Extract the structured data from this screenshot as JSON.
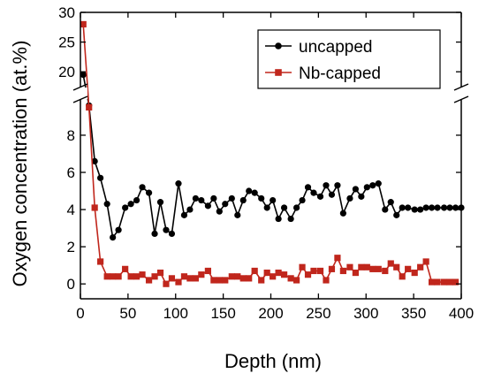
{
  "chart_data": {
    "type": "line",
    "title": "",
    "xlabel": "Depth (nm)",
    "ylabel": "Oxygen concentration (at.%)",
    "xlim": [
      0,
      400
    ],
    "y_lower_range": [
      -0.8,
      9.9
    ],
    "y_upper_range": [
      17.5,
      30
    ],
    "y_axis_break": true,
    "x_ticks": [
      0,
      50,
      100,
      150,
      200,
      250,
      300,
      350,
      400
    ],
    "y_ticks_lower": [
      0,
      2,
      4,
      6,
      8
    ],
    "y_ticks_upper": [
      20,
      25,
      30
    ],
    "grid": false,
    "legend_position": "top-right",
    "series": [
      {
        "name": "uncapped",
        "color": "#000000",
        "marker": "circle",
        "x": [
          3,
          9,
          15,
          21,
          28,
          34,
          40,
          47,
          53,
          59,
          65,
          72,
          78,
          84,
          90,
          96,
          103,
          109,
          115,
          121,
          127,
          134,
          140,
          146,
          152,
          159,
          165,
          171,
          177,
          183,
          190,
          196,
          202,
          208,
          214,
          221,
          227,
          233,
          239,
          245,
          252,
          258,
          264,
          270,
          276,
          283,
          289,
          295,
          301,
          307,
          313,
          320,
          326,
          332,
          338,
          344,
          351,
          357,
          363,
          369,
          375,
          382,
          388,
          394,
          400
        ],
        "y": [
          19.5,
          9.6,
          6.6,
          5.7,
          4.3,
          2.5,
          2.9,
          4.1,
          4.3,
          4.5,
          5.2,
          4.9,
          2.7,
          4.4,
          2.9,
          2.7,
          5.4,
          3.7,
          4.0,
          4.6,
          4.5,
          4.2,
          4.6,
          3.9,
          4.3,
          4.6,
          3.7,
          4.5,
          5.0,
          4.9,
          4.6,
          4.1,
          4.5,
          3.5,
          4.1,
          3.5,
          4.1,
          4.5,
          5.2,
          4.9,
          4.7,
          5.3,
          4.8,
          5.3,
          3.8,
          4.6,
          5.1,
          4.7,
          5.2,
          5.3,
          5.4,
          4.0,
          4.4,
          3.7,
          4.1,
          4.1,
          4.0,
          4.0,
          4.1,
          4.1,
          4.1,
          4.1,
          4.1,
          4.1,
          4.1
        ]
      },
      {
        "name": "Nb-capped",
        "color": "#c0261c",
        "marker": "square",
        "x": [
          3,
          9,
          15,
          21,
          28,
          34,
          40,
          47,
          53,
          59,
          65,
          72,
          78,
          84,
          90,
          96,
          103,
          109,
          115,
          121,
          127,
          134,
          140,
          146,
          152,
          159,
          165,
          171,
          177,
          183,
          190,
          196,
          202,
          208,
          214,
          221,
          227,
          233,
          239,
          245,
          252,
          258,
          264,
          270,
          276,
          283,
          289,
          295,
          301,
          307,
          313,
          320,
          326,
          332,
          338,
          344,
          351,
          357,
          363,
          369,
          375,
          382,
          388,
          394
        ],
        "y": [
          28.0,
          9.5,
          4.1,
          1.2,
          0.4,
          0.4,
          0.4,
          0.8,
          0.4,
          0.4,
          0.5,
          0.2,
          0.4,
          0.6,
          0.0,
          0.3,
          0.1,
          0.4,
          0.3,
          0.3,
          0.5,
          0.7,
          0.2,
          0.2,
          0.2,
          0.4,
          0.4,
          0.3,
          0.3,
          0.7,
          0.2,
          0.6,
          0.4,
          0.6,
          0.5,
          0.3,
          0.2,
          0.9,
          0.5,
          0.7,
          0.7,
          0.2,
          0.8,
          1.4,
          0.7,
          0.9,
          0.6,
          0.9,
          0.9,
          0.8,
          0.8,
          0.7,
          1.1,
          0.9,
          0.4,
          0.8,
          0.6,
          0.9,
          1.2,
          0.1,
          0.1,
          0.1,
          0.1,
          0.1
        ]
      }
    ]
  }
}
